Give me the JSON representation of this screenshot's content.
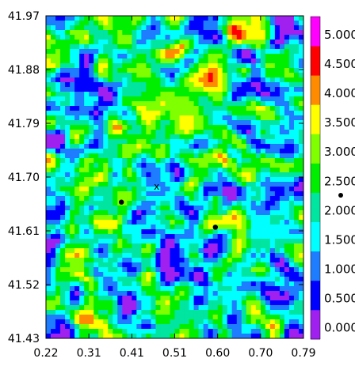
{
  "chart_data": {
    "type": "heatmap",
    "title": "",
    "xlabel": "",
    "ylabel": "",
    "xlim": [
      0.22,
      0.79
    ],
    "ylim": [
      41.43,
      41.97
    ],
    "x_ticks": [
      "0.22",
      "0.31",
      "0.41",
      "0.51",
      "0.60",
      "0.70",
      "0.79"
    ],
    "y_ticks": [
      "41.97",
      "41.88",
      "41.79",
      "41.70",
      "41.61",
      "41.52",
      "41.43"
    ],
    "colorbar": {
      "levels": [
        "0.000",
        "0.500",
        "1.000",
        "1.500",
        "2.000",
        "2.500",
        "3.000",
        "3.500",
        "4.000",
        "4.500",
        "5.000"
      ],
      "colors": [
        "#a020f0",
        "#0000ff",
        "#1e7dff",
        "#00ffff",
        "#00e5a0",
        "#00ee00",
        "#7fff00",
        "#ffff00",
        "#ff8c00",
        "#ff0000",
        "#ff00ff"
      ]
    },
    "markers": [
      {
        "type": "cross",
        "label": "x",
        "x": 0.465,
        "y": 41.684
      },
      {
        "type": "dot",
        "x": 0.387,
        "y": 41.658
      },
      {
        "type": "dot",
        "x": 0.595,
        "y": 41.616
      }
    ],
    "hotspots": [
      {
        "x": 0.535,
        "y": 41.793,
        "value": 4.2
      },
      {
        "x": 0.585,
        "y": 41.868,
        "value": 4.6
      },
      {
        "x": 0.52,
        "y": 41.82,
        "value": 3.3
      },
      {
        "x": 0.46,
        "y": 41.84,
        "value": 2.9
      }
    ]
  }
}
